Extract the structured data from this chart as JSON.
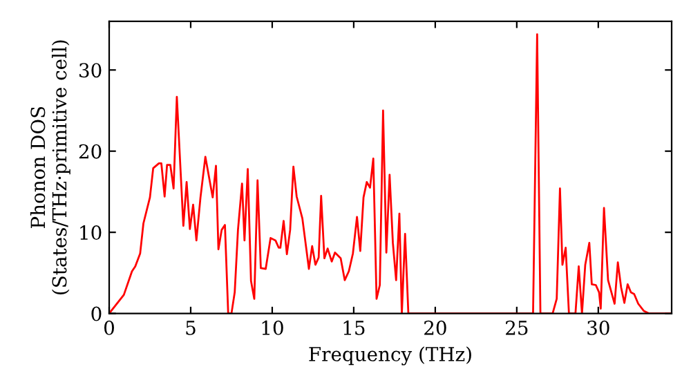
{
  "chart_data": {
    "type": "line",
    "xlabel": "Frequency (THz)",
    "ylabel": "Phonon DOS\n(States/THz·primitive cell)",
    "x": [
      0,
      0.9,
      1.4,
      1.6,
      1.9,
      2.1,
      2.5,
      2.7,
      3.05,
      3.2,
      3.4,
      3.55,
      3.75,
      3.95,
      4.15,
      4.55,
      4.75,
      4.95,
      5.15,
      5.35,
      5.6,
      5.9,
      6.35,
      6.55,
      6.7,
      6.9,
      7.1,
      7.3,
      7.5,
      7.7,
      7.9,
      8.15,
      8.3,
      8.5,
      8.7,
      8.9,
      9.1,
      9.3,
      9.6,
      9.9,
      10.2,
      10.4,
      10.5,
      10.7,
      10.9,
      11.1,
      11.3,
      11.5,
      11.85,
      12.25,
      12.45,
      12.65,
      12.85,
      13.0,
      13.2,
      13.4,
      13.65,
      13.85,
      14.2,
      14.45,
      14.7,
      14.95,
      15.2,
      15.4,
      15.6,
      15.8,
      16.0,
      16.2,
      16.4,
      16.6,
      16.8,
      17.0,
      17.2,
      17.4,
      17.6,
      17.8,
      17.95,
      18.15,
      18.35,
      26.0,
      26.25,
      26.45,
      27.2,
      27.45,
      27.65,
      27.8,
      28.0,
      28.2,
      28.6,
      28.8,
      29.0,
      29.2,
      29.45,
      29.6,
      29.85,
      30.05,
      30.15,
      30.35,
      30.6,
      31.0,
      31.2,
      31.4,
      31.6,
      31.8,
      32.0,
      32.2,
      32.45,
      32.8,
      33.1,
      34.5
    ],
    "series": [
      {
        "color": "#ff0000",
        "values": [
          0,
          2.3,
          5.2,
          5.8,
          7.4,
          11.1,
          14.3,
          17.9,
          18.5,
          18.5,
          14.4,
          18.3,
          18.3,
          15.4,
          26.7,
          10.8,
          16.2,
          10.4,
          13.4,
          9.0,
          14.3,
          19.3,
          14.3,
          18.2,
          7.9,
          10.3,
          10.9,
          0,
          0,
          2.6,
          10.3,
          16.0,
          9.0,
          17.8,
          4.0,
          1.8,
          16.4,
          5.6,
          5.5,
          9.3,
          9.0,
          8.1,
          8.1,
          11.4,
          7.3,
          10.3,
          18.1,
          14.4,
          11.7,
          5.5,
          8.3,
          6.0,
          6.9,
          14.5,
          6.8,
          8.0,
          6.4,
          7.5,
          6.8,
          4.1,
          5.2,
          7.4,
          11.9,
          7.7,
          14.3,
          16.2,
          15.5,
          19.1,
          1.8,
          3.5,
          25.0,
          7.5,
          17.1,
          8.7,
          4.1,
          12.3,
          0,
          9.8,
          0,
          0,
          34.4,
          0,
          0,
          1.8,
          15.4,
          6.0,
          8.1,
          0,
          0,
          5.8,
          0,
          6.0,
          8.7,
          3.6,
          3.5,
          2.6,
          0.6,
          13.0,
          4.1,
          1.2,
          6.3,
          3.2,
          1.3,
          3.6,
          2.6,
          2.4,
          1.2,
          0.3,
          0,
          0
        ]
      }
    ],
    "xlim": [
      0,
      34.5
    ],
    "ylim": [
      0,
      36
    ],
    "xticks": [
      0,
      5,
      10,
      15,
      20,
      25,
      30
    ],
    "yticks": [
      0,
      10,
      20,
      30
    ],
    "grid": false,
    "legend": false,
    "line_style": "solid",
    "marker": "none"
  }
}
